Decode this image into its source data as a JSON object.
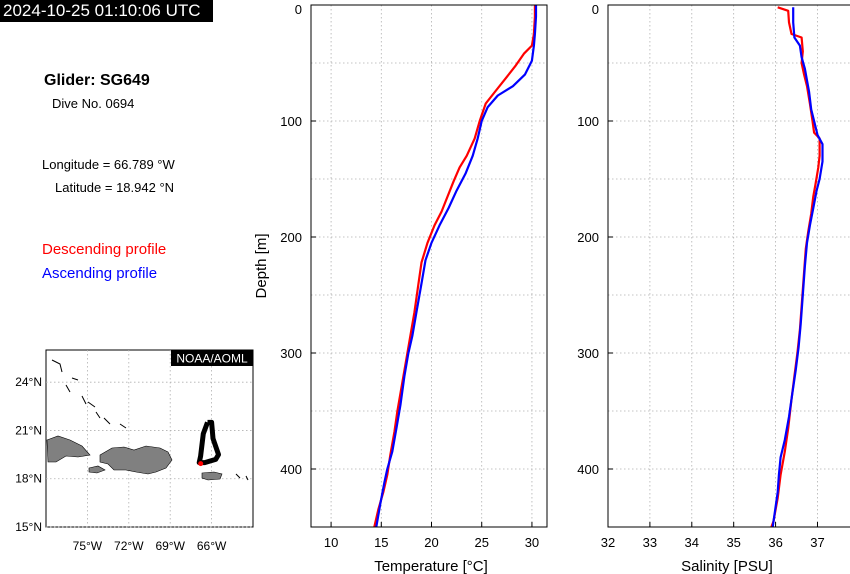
{
  "header": {
    "timestamp": "2024-10-25 01:10:06 UTC",
    "glider_title": "Glider: SG649",
    "dive_no": "Dive No. 0694",
    "longitude": "Longitude = 66.789 °W",
    "latitude": "Latitude = 18.942 °N",
    "legend_descending": "Descending profile",
    "legend_ascending": "Ascending profile"
  },
  "colors": {
    "descending": "#ff0000",
    "ascending": "#0000ff",
    "grid": "#b0b0b0",
    "land": "#808080"
  },
  "map": {
    "credit": "NOAA/AOML",
    "lat_ticks": [
      "24°N",
      "21°N",
      "18°N",
      "15°N"
    ],
    "lon_ticks": [
      "75°W",
      "72°W",
      "69°W",
      "66°W"
    ],
    "xlim": [
      -78,
      -63
    ],
    "ylim": [
      15,
      26
    ],
    "track": [
      [
        -66.3,
        21.5
      ],
      [
        -66.0,
        21.5
      ],
      [
        -65.9,
        20.5
      ],
      [
        -65.5,
        19.5
      ],
      [
        -65.7,
        19.2
      ],
      [
        -66.5,
        19.0
      ],
      [
        -66.9,
        19.0
      ],
      [
        -66.8,
        19.4
      ],
      [
        -66.6,
        20.8
      ],
      [
        -66.3,
        21.5
      ]
    ],
    "position": [
      -66.789,
      18.942
    ]
  },
  "chart_data": [
    {
      "type": "line",
      "xlabel": "Temperature [°C]",
      "ylabel": "Depth [m]",
      "xlim": [
        8,
        31.5
      ],
      "ylim": [
        0,
        450
      ],
      "y_inverted": true,
      "xticks": [
        10,
        15,
        20,
        25,
        30
      ],
      "yticks": [
        0,
        100,
        200,
        300,
        400
      ],
      "grid": true,
      "series": [
        {
          "name": "Descending profile",
          "color": "#ff0000",
          "points": [
            [
              30.3,
              0
            ],
            [
              30.3,
              10
            ],
            [
              30.2,
              25
            ],
            [
              30.0,
              35
            ],
            [
              29.2,
              42
            ],
            [
              28.4,
              52
            ],
            [
              27.5,
              62
            ],
            [
              26.3,
              75
            ],
            [
              25.4,
              85
            ],
            [
              24.8,
              100
            ],
            [
              24.3,
              115
            ],
            [
              23.5,
              130
            ],
            [
              22.8,
              140
            ],
            [
              22.2,
              152
            ],
            [
              21.6,
              165
            ],
            [
              21.0,
              178
            ],
            [
              20.3,
              190
            ],
            [
              19.6,
              205
            ],
            [
              19.0,
              222
            ],
            [
              18.7,
              240
            ],
            [
              18.3,
              265
            ],
            [
              17.9,
              285
            ],
            [
              17.6,
              300
            ],
            [
              17.1,
              325
            ],
            [
              16.6,
              350
            ],
            [
              16.3,
              368
            ],
            [
              15.9,
              388
            ],
            [
              15.6,
              405
            ],
            [
              15.2,
              420
            ],
            [
              14.7,
              435
            ],
            [
              14.3,
              452
            ]
          ]
        },
        {
          "name": "Ascending profile",
          "color": "#0000ff",
          "points": [
            [
              30.4,
              0
            ],
            [
              30.4,
              10
            ],
            [
              30.3,
              25
            ],
            [
              30.2,
              35
            ],
            [
              30.0,
              48
            ],
            [
              29.3,
              60
            ],
            [
              28.1,
              70
            ],
            [
              26.6,
              78
            ],
            [
              25.6,
              88
            ],
            [
              25.0,
              100
            ],
            [
              24.6,
              115
            ],
            [
              24.1,
              130
            ],
            [
              23.4,
              145
            ],
            [
              22.5,
              160
            ],
            [
              21.7,
              175
            ],
            [
              20.8,
              190
            ],
            [
              20.0,
              205
            ],
            [
              19.4,
              220
            ],
            [
              19.0,
              240
            ],
            [
              18.5,
              265
            ],
            [
              18.1,
              285
            ],
            [
              17.7,
              300
            ],
            [
              17.3,
              320
            ],
            [
              16.9,
              345
            ],
            [
              16.5,
              365
            ],
            [
              16.1,
              385
            ],
            [
              15.6,
              400
            ],
            [
              15.3,
              412
            ],
            [
              14.9,
              430
            ],
            [
              14.5,
              452
            ]
          ]
        }
      ]
    },
    {
      "type": "line",
      "xlabel": "Salinity [PSU]",
      "ylabel": "",
      "xlim": [
        32,
        37.8
      ],
      "ylim": [
        0,
        450
      ],
      "y_inverted": true,
      "xticks": [
        32,
        33,
        34,
        35,
        36,
        37
      ],
      "yticks": [
        0,
        100,
        200,
        300,
        400
      ],
      "grid": true,
      "series": [
        {
          "name": "Descending profile",
          "color": "#ff0000",
          "points": [
            [
              36.05,
              2
            ],
            [
              36.3,
              5
            ],
            [
              36.32,
              15
            ],
            [
              36.38,
              25
            ],
            [
              36.62,
              28
            ],
            [
              36.65,
              40
            ],
            [
              36.62,
              50
            ],
            [
              36.68,
              60
            ],
            [
              36.75,
              70
            ],
            [
              36.82,
              85
            ],
            [
              36.88,
              100
            ],
            [
              36.92,
              110
            ],
            [
              37.05,
              115
            ],
            [
              37.05,
              130
            ],
            [
              37.02,
              140
            ],
            [
              36.95,
              155
            ],
            [
              36.9,
              165
            ],
            [
              36.85,
              180
            ],
            [
              36.78,
              195
            ],
            [
              36.72,
              210
            ],
            [
              36.68,
              230
            ],
            [
              36.63,
              255
            ],
            [
              36.58,
              280
            ],
            [
              36.52,
              300
            ],
            [
              36.45,
              320
            ],
            [
              36.38,
              340
            ],
            [
              36.3,
              365
            ],
            [
              36.22,
              385
            ],
            [
              36.12,
              405
            ],
            [
              36.05,
              425
            ],
            [
              35.95,
              445
            ],
            [
              35.9,
              452
            ]
          ]
        },
        {
          "name": "Ascending profile",
          "color": "#0000ff",
          "points": [
            [
              36.42,
              2
            ],
            [
              36.42,
              15
            ],
            [
              36.45,
              28
            ],
            [
              36.58,
              35
            ],
            [
              36.62,
              45
            ],
            [
              36.7,
              55
            ],
            [
              36.75,
              65
            ],
            [
              36.8,
              75
            ],
            [
              36.85,
              90
            ],
            [
              36.92,
              100
            ],
            [
              37.0,
              112
            ],
            [
              37.12,
              120
            ],
            [
              37.12,
              135
            ],
            [
              37.05,
              150
            ],
            [
              36.98,
              160
            ],
            [
              36.9,
              175
            ],
            [
              36.82,
              190
            ],
            [
              36.75,
              205
            ],
            [
              36.7,
              225
            ],
            [
              36.65,
              250
            ],
            [
              36.6,
              275
            ],
            [
              36.55,
              295
            ],
            [
              36.48,
              315
            ],
            [
              36.4,
              335
            ],
            [
              36.32,
              355
            ],
            [
              36.22,
              375
            ],
            [
              36.12,
              390
            ],
            [
              36.08,
              405
            ],
            [
              36.05,
              420
            ],
            [
              35.98,
              438
            ],
            [
              35.93,
              452
            ]
          ]
        }
      ]
    }
  ]
}
